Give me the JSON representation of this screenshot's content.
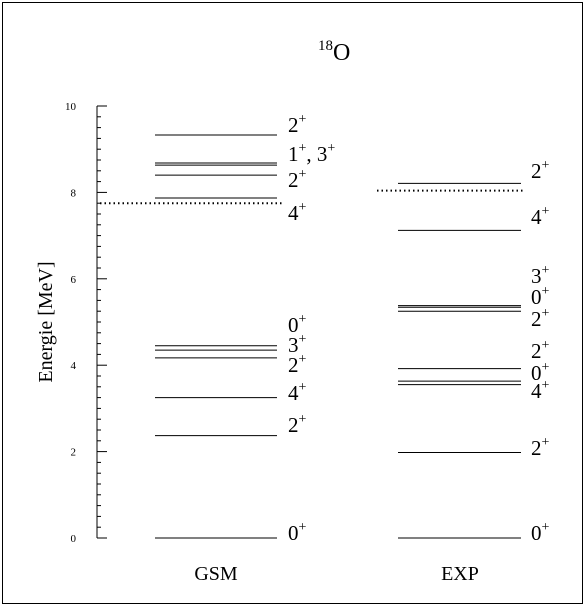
{
  "chart_data": {
    "type": "level-scheme",
    "title": "O",
    "title_superscript": "18",
    "ylabel": "Energie [MeV]",
    "ylim": [
      0,
      10
    ],
    "yticks": [
      0,
      2,
      4,
      6,
      8,
      10
    ],
    "columns": [
      {
        "name": "GSM",
        "levels": [
          {
            "energy": 0.0,
            "label": "0",
            "sup": "+"
          },
          {
            "energy": 2.37,
            "label": "2",
            "sup": "+"
          },
          {
            "energy": 3.25,
            "label": "4",
            "sup": "+"
          },
          {
            "energy": 4.17,
            "label": "2",
            "sup": "+"
          },
          {
            "energy": 4.35,
            "label": "3",
            "sup": "+"
          },
          {
            "energy": 4.45,
            "label": "0",
            "sup": "+"
          },
          {
            "energy": 7.87,
            "label": "4",
            "sup": "+"
          },
          {
            "energy": 8.4,
            "label": "2",
            "sup": "+"
          },
          {
            "energy": 8.63,
            "label": "1",
            "sup": "+",
            "label2": ", 3",
            "sup2": "+"
          },
          {
            "energy": 8.68
          },
          {
            "energy": 9.33,
            "label": "2",
            "sup": "+"
          }
        ],
        "threshold": 7.75
      },
      {
        "name": "EXP",
        "levels": [
          {
            "energy": 0.0,
            "label": "0",
            "sup": "+"
          },
          {
            "energy": 1.98,
            "label": "2",
            "sup": "+"
          },
          {
            "energy": 3.55,
            "label": "4",
            "sup": "+"
          },
          {
            "energy": 3.63,
            "label": "0",
            "sup": "+"
          },
          {
            "energy": 3.92,
            "label": "2",
            "sup": "+"
          },
          {
            "energy": 5.25,
            "label": "2",
            "sup": "+"
          },
          {
            "energy": 5.34,
            "label": "0",
            "sup": "+"
          },
          {
            "energy": 5.38,
            "label": "3",
            "sup": "+"
          },
          {
            "energy": 7.12,
            "label": "4",
            "sup": "+"
          },
          {
            "energy": 8.21,
            "label": "2",
            "sup": "+"
          }
        ],
        "threshold": 8.04
      }
    ]
  }
}
